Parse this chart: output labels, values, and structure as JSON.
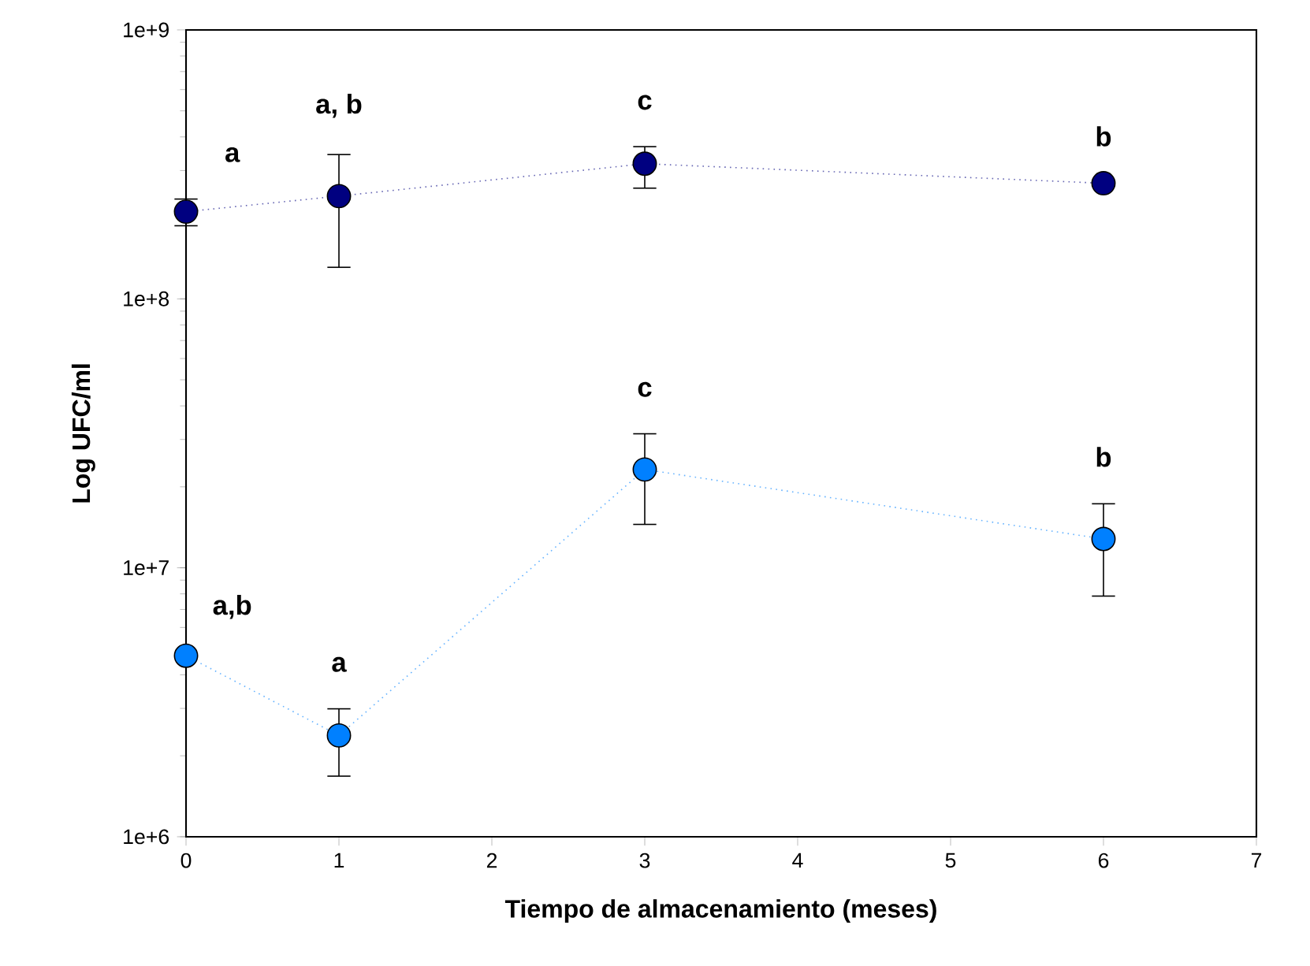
{
  "chart_data": {
    "type": "line",
    "xlabel": "Tiempo de almacenamiento (meses)",
    "ylabel": "Log UFC/ml",
    "log": "y",
    "marker": "circle",
    "line_style": "dotted",
    "grid": false,
    "xlim": [
      0,
      7
    ],
    "xticks": [
      0,
      1,
      2,
      3,
      4,
      5,
      6,
      7
    ],
    "ylim": [
      1000000,
      1000000000
    ],
    "yticks": [
      {
        "value": 1000000,
        "label": "1e+6"
      },
      {
        "value": 10000000,
        "label": "1e+7"
      },
      {
        "value": 100000000,
        "label": "1e+8"
      },
      {
        "value": 1000000000,
        "label": "1e+9"
      }
    ],
    "series": [
      {
        "color": "#000080",
        "x": [
          0,
          1,
          3,
          6
        ],
        "values": [
          211000000,
          241000000,
          318000000,
          269000000
        ],
        "errors": [
          [
            187000000,
            235000000
          ],
          [
            131000000,
            344000000
          ],
          [
            258000000,
            368000000
          ],
          null
        ]
      },
      {
        "color": "#0080ff",
        "x": [
          0,
          1,
          3,
          6
        ],
        "values": [
          4710000,
          2380000,
          23200000,
          12800000
        ],
        "errors": [
          null,
          [
            1680000,
            2990000
          ],
          [
            14500000,
            31500000
          ],
          [
            7850000,
            17300000
          ]
        ]
      }
    ],
    "annotations": [
      "a",
      "a, b",
      "c",
      "b",
      "a,b",
      "a",
      "c",
      "b"
    ]
  }
}
